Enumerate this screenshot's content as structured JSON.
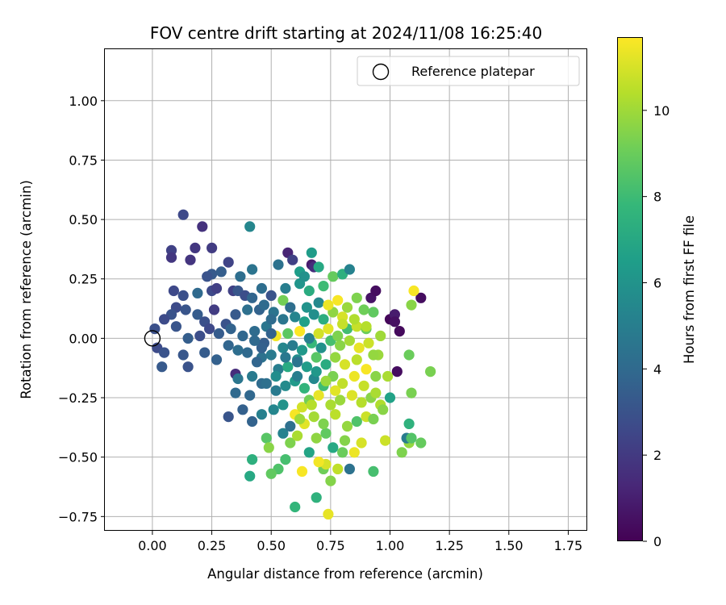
{
  "chart_data": {
    "type": "scatter",
    "title": "FOV centre drift starting at 2024/11/08 16:25:40",
    "xlabel": "Angular distance from reference (arcmin)",
    "ylabel": "Rotation from reference (arcmin)",
    "xlim": [
      -0.2,
      1.83
    ],
    "ylim": [
      -0.81,
      1.22
    ],
    "x_ticks": [
      0.0,
      0.25,
      0.5,
      0.75,
      1.0,
      1.25,
      1.5,
      1.75
    ],
    "x_tick_labels": [
      "0.00",
      "0.25",
      "0.50",
      "0.75",
      "1.00",
      "1.25",
      "1.50",
      "1.75"
    ],
    "y_ticks": [
      1.0,
      0.75,
      0.5,
      0.25,
      0.0,
      -0.25,
      -0.5,
      -0.75
    ],
    "y_tick_labels": [
      "1.00",
      "0.75",
      "0.50",
      "0.25",
      "0.00",
      "−0.25",
      "−0.50",
      "−0.75"
    ],
    "grid": true,
    "legend": {
      "placement": "top-right",
      "entries": [
        "Reference platepar"
      ]
    },
    "reference_point": {
      "x": 0.0,
      "y": 0.0,
      "label": "Reference platepar"
    },
    "colorbar": {
      "label": "Hours from first FF file",
      "colormap": "viridis",
      "range": [
        0,
        11.7
      ],
      "ticks": [
        0,
        2,
        4,
        6,
        8,
        10
      ],
      "tick_labels": [
        "0",
        "2",
        "4",
        "6",
        "8",
        "10"
      ]
    },
    "colormap_stops": [
      "#440154",
      "#482878",
      "#3e4989",
      "#31688e",
      "#26828e",
      "#1f9e89",
      "#35b779",
      "#6ece58",
      "#b5de2b",
      "#fde725"
    ],
    "points": [
      {
        "x": 0.13,
        "y": 0.52,
        "c": 2.6
      },
      {
        "x": 0.21,
        "y": 0.47,
        "c": 1.7
      },
      {
        "x": 0.25,
        "y": 0.38,
        "c": 2.1
      },
      {
        "x": 0.18,
        "y": 0.38,
        "c": 1.9
      },
      {
        "x": 0.08,
        "y": 0.37,
        "c": 2.3
      },
      {
        "x": 0.16,
        "y": 0.33,
        "c": 1.8
      },
      {
        "x": 0.08,
        "y": 0.34,
        "c": 1.9
      },
      {
        "x": 0.32,
        "y": 0.32,
        "c": 2.4
      },
      {
        "x": 0.25,
        "y": 0.27,
        "c": 3.3
      },
      {
        "x": 0.23,
        "y": 0.26,
        "c": 3.0
      },
      {
        "x": 0.29,
        "y": 0.28,
        "c": 3.5
      },
      {
        "x": 0.37,
        "y": 0.26,
        "c": 4.2
      },
      {
        "x": 0.42,
        "y": 0.29,
        "c": 4.5
      },
      {
        "x": 0.41,
        "y": 0.47,
        "c": 5.4
      },
      {
        "x": 0.09,
        "y": 0.2,
        "c": 2.6
      },
      {
        "x": 0.13,
        "y": 0.18,
        "c": 2.9
      },
      {
        "x": 0.19,
        "y": 0.19,
        "c": 4.0
      },
      {
        "x": 0.25,
        "y": 0.2,
        "c": 2.6
      },
      {
        "x": 0.27,
        "y": 0.21,
        "c": 2.2
      },
      {
        "x": 0.34,
        "y": 0.2,
        "c": 2.3
      },
      {
        "x": 0.36,
        "y": 0.2,
        "c": 3.2
      },
      {
        "x": 0.39,
        "y": 0.18,
        "c": 2.8
      },
      {
        "x": 0.42,
        "y": 0.17,
        "c": 3.8
      },
      {
        "x": 0.1,
        "y": 0.13,
        "c": 2.7
      },
      {
        "x": 0.14,
        "y": 0.12,
        "c": 3.1
      },
      {
        "x": 0.08,
        "y": 0.1,
        "c": 3.0
      },
      {
        "x": 0.05,
        "y": 0.08,
        "c": 2.7
      },
      {
        "x": 0.19,
        "y": 0.1,
        "c": 3.4
      },
      {
        "x": 0.22,
        "y": 0.07,
        "c": 2.9
      },
      {
        "x": 0.26,
        "y": 0.12,
        "c": 2.1
      },
      {
        "x": 0.31,
        "y": 0.06,
        "c": 3.0
      },
      {
        "x": 0.35,
        "y": 0.1,
        "c": 3.3
      },
      {
        "x": 0.4,
        "y": 0.12,
        "c": 4.3
      },
      {
        "x": 0.45,
        "y": 0.12,
        "c": 3.7
      },
      {
        "x": 0.47,
        "y": 0.14,
        "c": 4.1
      },
      {
        "x": 0.51,
        "y": 0.11,
        "c": 4.5
      },
      {
        "x": 0.01,
        "y": 0.04,
        "c": 2.9
      },
      {
        "x": 0.1,
        "y": 0.05,
        "c": 3.1
      },
      {
        "x": 0.15,
        "y": 0.0,
        "c": 3.5
      },
      {
        "x": 0.2,
        "y": 0.01,
        "c": 2.8
      },
      {
        "x": 0.24,
        "y": 0.04,
        "c": 2.6
      },
      {
        "x": 0.28,
        "y": 0.02,
        "c": 3.4
      },
      {
        "x": 0.33,
        "y": 0.04,
        "c": 3.7
      },
      {
        "x": 0.38,
        "y": 0.01,
        "c": 3.9
      },
      {
        "x": 0.43,
        "y": 0.03,
        "c": 4.1
      },
      {
        "x": 0.48,
        "y": 0.05,
        "c": 4.6
      },
      {
        "x": 0.02,
        "y": -0.04,
        "c": 2.7
      },
      {
        "x": 0.05,
        "y": -0.06,
        "c": 3.0
      },
      {
        "x": 0.13,
        "y": -0.07,
        "c": 3.2
      },
      {
        "x": 0.22,
        "y": -0.06,
        "c": 3.4
      },
      {
        "x": 0.27,
        "y": -0.09,
        "c": 3.6
      },
      {
        "x": 0.32,
        "y": -0.03,
        "c": 3.8
      },
      {
        "x": 0.36,
        "y": -0.05,
        "c": 4.2
      },
      {
        "x": 0.4,
        "y": -0.06,
        "c": 4.0
      },
      {
        "x": 0.46,
        "y": -0.08,
        "c": 4.4
      },
      {
        "x": 0.04,
        "y": -0.12,
        "c": 3.3
      },
      {
        "x": 0.15,
        "y": -0.12,
        "c": 3.0
      },
      {
        "x": 0.35,
        "y": -0.15,
        "c": 1.5
      },
      {
        "x": 0.36,
        "y": -0.17,
        "c": 4.6
      },
      {
        "x": 0.42,
        "y": -0.16,
        "c": 4.8
      },
      {
        "x": 0.46,
        "y": -0.19,
        "c": 4.1
      },
      {
        "x": 0.35,
        "y": -0.23,
        "c": 4.0
      },
      {
        "x": 0.41,
        "y": -0.24,
        "c": 3.9
      },
      {
        "x": 0.48,
        "y": -0.19,
        "c": 4.3
      },
      {
        "x": 0.38,
        "y": -0.3,
        "c": 3.6
      },
      {
        "x": 0.32,
        "y": -0.33,
        "c": 3.1
      },
      {
        "x": 0.42,
        "y": -0.35,
        "c": 3.7
      },
      {
        "x": 0.46,
        "y": -0.32,
        "c": 5.1
      },
      {
        "x": 0.51,
        "y": -0.3,
        "c": 5.4
      },
      {
        "x": 0.55,
        "y": -0.28,
        "c": 6.0
      },
      {
        "x": 0.48,
        "y": -0.42,
        "c": 8.6
      },
      {
        "x": 0.55,
        "y": -0.4,
        "c": 5.2
      },
      {
        "x": 0.58,
        "y": -0.37,
        "c": 4.3
      },
      {
        "x": 0.49,
        "y": -0.46,
        "c": 9.6
      },
      {
        "x": 0.42,
        "y": -0.51,
        "c": 7.4
      },
      {
        "x": 0.41,
        "y": -0.58,
        "c": 7.0
      },
      {
        "x": 0.53,
        "y": -0.55,
        "c": 8.4
      },
      {
        "x": 0.5,
        "y": -0.57,
        "c": 8.8
      },
      {
        "x": 0.56,
        "y": -0.51,
        "c": 8.2
      },
      {
        "x": 0.58,
        "y": -0.44,
        "c": 9.4
      },
      {
        "x": 0.61,
        "y": -0.41,
        "c": 10.2
      },
      {
        "x": 0.6,
        "y": -0.71,
        "c": 7.7
      },
      {
        "x": 0.69,
        "y": -0.67,
        "c": 7.5
      },
      {
        "x": 0.74,
        "y": -0.74,
        "c": 11.3
      },
      {
        "x": 0.75,
        "y": -0.6,
        "c": 9.5
      },
      {
        "x": 0.72,
        "y": -0.55,
        "c": 9.1
      },
      {
        "x": 0.78,
        "y": -0.55,
        "c": 10.6
      },
      {
        "x": 0.83,
        "y": -0.55,
        "c": 4.4
      },
      {
        "x": 0.93,
        "y": -0.56,
        "c": 8.2
      },
      {
        "x": 0.73,
        "y": -0.53,
        "c": 11.0
      },
      {
        "x": 0.7,
        "y": -0.52,
        "c": 11.5
      },
      {
        "x": 0.63,
        "y": -0.56,
        "c": 11.6
      },
      {
        "x": 0.66,
        "y": -0.48,
        "c": 6.8
      },
      {
        "x": 0.76,
        "y": -0.46,
        "c": 7.0
      },
      {
        "x": 0.8,
        "y": -0.48,
        "c": 9.0
      },
      {
        "x": 0.85,
        "y": -0.48,
        "c": 11.4
      },
      {
        "x": 0.69,
        "y": -0.42,
        "c": 9.7
      },
      {
        "x": 0.73,
        "y": -0.4,
        "c": 8.8
      },
      {
        "x": 0.81,
        "y": -0.43,
        "c": 9.5
      },
      {
        "x": 0.88,
        "y": -0.44,
        "c": 11.0
      },
      {
        "x": 0.64,
        "y": -0.36,
        "c": 11.2
      },
      {
        "x": 0.68,
        "y": -0.33,
        "c": 10.1
      },
      {
        "x": 0.72,
        "y": -0.36,
        "c": 9.4
      },
      {
        "x": 0.77,
        "y": -0.32,
        "c": 10.5
      },
      {
        "x": 0.82,
        "y": -0.37,
        "c": 9.8
      },
      {
        "x": 0.86,
        "y": -0.35,
        "c": 8.4
      },
      {
        "x": 0.9,
        "y": -0.33,
        "c": 10.8
      },
      {
        "x": 0.93,
        "y": -0.34,
        "c": 9.3
      },
      {
        "x": 0.6,
        "y": -0.32,
        "c": 11.6
      },
      {
        "x": 0.63,
        "y": -0.29,
        "c": 10.9
      },
      {
        "x": 0.66,
        "y": -0.26,
        "c": 9.2
      },
      {
        "x": 0.7,
        "y": -0.24,
        "c": 11.3
      },
      {
        "x": 0.75,
        "y": -0.28,
        "c": 10.2
      },
      {
        "x": 0.79,
        "y": -0.26,
        "c": 9.9
      },
      {
        "x": 0.84,
        "y": -0.24,
        "c": 11.1
      },
      {
        "x": 0.88,
        "y": -0.27,
        "c": 10.4
      },
      {
        "x": 0.92,
        "y": -0.25,
        "c": 9.6
      },
      {
        "x": 0.96,
        "y": -0.28,
        "c": 10.3
      },
      {
        "x": 1.0,
        "y": -0.25,
        "c": 6.7
      },
      {
        "x": 0.52,
        "y": -0.22,
        "c": 4.8
      },
      {
        "x": 0.56,
        "y": -0.2,
        "c": 5.6
      },
      {
        "x": 0.6,
        "y": -0.18,
        "c": 6.3
      },
      {
        "x": 0.64,
        "y": -0.21,
        "c": 7.6
      },
      {
        "x": 0.68,
        "y": -0.17,
        "c": 5.5
      },
      {
        "x": 0.72,
        "y": -0.2,
        "c": 8.0
      },
      {
        "x": 0.76,
        "y": -0.16,
        "c": 9.3
      },
      {
        "x": 0.8,
        "y": -0.19,
        "c": 10.6
      },
      {
        "x": 0.85,
        "y": -0.16,
        "c": 11.4
      },
      {
        "x": 0.89,
        "y": -0.2,
        "c": 10.7
      },
      {
        "x": 0.94,
        "y": -0.16,
        "c": 9.6
      },
      {
        "x": 0.99,
        "y": -0.16,
        "c": 10.2
      },
      {
        "x": 1.03,
        "y": -0.14,
        "c": 0.4
      },
      {
        "x": 1.09,
        "y": -0.23,
        "c": 9.3
      },
      {
        "x": 0.53,
        "y": -0.13,
        "c": 5.0
      },
      {
        "x": 0.57,
        "y": -0.12,
        "c": 7.1
      },
      {
        "x": 0.61,
        "y": -0.09,
        "c": 5.7
      },
      {
        "x": 0.65,
        "y": -0.12,
        "c": 6.4
      },
      {
        "x": 0.69,
        "y": -0.08,
        "c": 8.6
      },
      {
        "x": 0.73,
        "y": -0.11,
        "c": 7.2
      },
      {
        "x": 0.77,
        "y": -0.08,
        "c": 9.8
      },
      {
        "x": 0.81,
        "y": -0.11,
        "c": 11.0
      },
      {
        "x": 0.86,
        "y": -0.09,
        "c": 10.5
      },
      {
        "x": 0.9,
        "y": -0.13,
        "c": 11.6
      },
      {
        "x": 0.95,
        "y": -0.07,
        "c": 9.9
      },
      {
        "x": 1.08,
        "y": -0.07,
        "c": 9.0
      },
      {
        "x": 0.55,
        "y": -0.04,
        "c": 5.4
      },
      {
        "x": 0.59,
        "y": -0.03,
        "c": 4.9
      },
      {
        "x": 0.63,
        "y": -0.05,
        "c": 6.2
      },
      {
        "x": 0.67,
        "y": -0.02,
        "c": 7.8
      },
      {
        "x": 0.71,
        "y": -0.04,
        "c": 5.9
      },
      {
        "x": 0.75,
        "y": -0.01,
        "c": 8.2
      },
      {
        "x": 0.79,
        "y": -0.03,
        "c": 9.6
      },
      {
        "x": 0.83,
        "y": -0.01,
        "c": 10.1
      },
      {
        "x": 0.87,
        "y": -0.04,
        "c": 11.3
      },
      {
        "x": 0.91,
        "y": -0.02,
        "c": 10.8
      },
      {
        "x": 0.52,
        "y": 0.01,
        "c": 11.5
      },
      {
        "x": 0.57,
        "y": 0.02,
        "c": 8.7
      },
      {
        "x": 0.62,
        "y": 0.03,
        "c": 11.7
      },
      {
        "x": 0.66,
        "y": 0.0,
        "c": 5.1
      },
      {
        "x": 0.7,
        "y": 0.02,
        "c": 10.9
      },
      {
        "x": 0.74,
        "y": 0.04,
        "c": 11.2
      },
      {
        "x": 0.78,
        "y": 0.01,
        "c": 9.4
      },
      {
        "x": 0.82,
        "y": 0.04,
        "c": 8.1
      },
      {
        "x": 0.86,
        "y": 0.05,
        "c": 10.7
      },
      {
        "x": 0.9,
        "y": 0.04,
        "c": 9.0
      },
      {
        "x": 0.96,
        "y": 0.01,
        "c": 10.0
      },
      {
        "x": 0.55,
        "y": 0.08,
        "c": 4.6
      },
      {
        "x": 0.6,
        "y": 0.09,
        "c": 5.3
      },
      {
        "x": 0.64,
        "y": 0.07,
        "c": 6.6
      },
      {
        "x": 0.68,
        "y": 0.1,
        "c": 5.8
      },
      {
        "x": 0.72,
        "y": 0.08,
        "c": 7.3
      },
      {
        "x": 0.76,
        "y": 0.11,
        "c": 9.7
      },
      {
        "x": 0.8,
        "y": 0.09,
        "c": 11.0
      },
      {
        "x": 0.85,
        "y": 0.08,
        "c": 10.3
      },
      {
        "x": 0.89,
        "y": 0.12,
        "c": 9.1
      },
      {
        "x": 0.93,
        "y": 0.11,
        "c": 8.8
      },
      {
        "x": 0.55,
        "y": 0.16,
        "c": 9.2
      },
      {
        "x": 0.58,
        "y": 0.13,
        "c": 4.2
      },
      {
        "x": 0.65,
        "y": 0.13,
        "c": 6.0
      },
      {
        "x": 0.7,
        "y": 0.15,
        "c": 5.5
      },
      {
        "x": 0.74,
        "y": 0.14,
        "c": 11.4
      },
      {
        "x": 0.78,
        "y": 0.16,
        "c": 11.6
      },
      {
        "x": 0.82,
        "y": 0.13,
        "c": 9.9
      },
      {
        "x": 0.86,
        "y": 0.17,
        "c": 9.4
      },
      {
        "x": 0.92,
        "y": 0.17,
        "c": 0.6
      },
      {
        "x": 0.94,
        "y": 0.2,
        "c": 0.4
      },
      {
        "x": 0.56,
        "y": 0.21,
        "c": 5.0
      },
      {
        "x": 0.62,
        "y": 0.23,
        "c": 6.1
      },
      {
        "x": 0.66,
        "y": 0.2,
        "c": 7.2
      },
      {
        "x": 0.72,
        "y": 0.22,
        "c": 8.0
      },
      {
        "x": 0.76,
        "y": 0.26,
        "c": 8.9
      },
      {
        "x": 0.8,
        "y": 0.27,
        "c": 7.4
      },
      {
        "x": 0.83,
        "y": 0.29,
        "c": 5.2
      },
      {
        "x": 0.53,
        "y": 0.31,
        "c": 4.4
      },
      {
        "x": 0.57,
        "y": 0.36,
        "c": 1.2
      },
      {
        "x": 0.59,
        "y": 0.33,
        "c": 2.3
      },
      {
        "x": 0.62,
        "y": 0.28,
        "c": 6.5
      },
      {
        "x": 0.64,
        "y": 0.26,
        "c": 5.9
      },
      {
        "x": 0.67,
        "y": 0.31,
        "c": 0.9
      },
      {
        "x": 0.68,
        "y": 0.3,
        "c": 1.5
      },
      {
        "x": 0.67,
        "y": 0.36,
        "c": 6.4
      },
      {
        "x": 0.7,
        "y": 0.3,
        "c": 7.0
      },
      {
        "x": 0.46,
        "y": 0.21,
        "c": 4.2
      },
      {
        "x": 0.5,
        "y": 0.18,
        "c": 3.0
      },
      {
        "x": 0.5,
        "y": 0.08,
        "c": 4.1
      },
      {
        "x": 0.5,
        "y": 0.02,
        "c": 3.7
      },
      {
        "x": 0.47,
        "y": -0.02,
        "c": 3.5
      },
      {
        "x": 0.5,
        "y": -0.07,
        "c": 4.8
      },
      {
        "x": 1.0,
        "y": 0.08,
        "c": 0.2
      },
      {
        "x": 1.02,
        "y": 0.1,
        "c": 0.9
      },
      {
        "x": 1.02,
        "y": 0.07,
        "c": 0.5
      },
      {
        "x": 1.04,
        "y": 0.03,
        "c": 0.3
      },
      {
        "x": 1.13,
        "y": 0.17,
        "c": 0.4
      },
      {
        "x": 1.1,
        "y": 0.2,
        "c": 11.6
      },
      {
        "x": 1.09,
        "y": 0.14,
        "c": 9.6
      },
      {
        "x": 1.17,
        "y": -0.14,
        "c": 9.3
      },
      {
        "x": 1.13,
        "y": -0.44,
        "c": 8.9
      },
      {
        "x": 1.08,
        "y": -0.44,
        "c": 9.8
      },
      {
        "x": 1.05,
        "y": -0.48,
        "c": 9.4
      },
      {
        "x": 1.07,
        "y": -0.42,
        "c": 4.9
      },
      {
        "x": 1.09,
        "y": -0.42,
        "c": 8.5
      },
      {
        "x": 1.08,
        "y": -0.36,
        "c": 7.5
      },
      {
        "x": 0.98,
        "y": -0.43,
        "c": 10.8
      },
      {
        "x": 0.97,
        "y": -0.3,
        "c": 9.6
      },
      {
        "x": 0.94,
        "y": -0.23,
        "c": 10.2
      },
      {
        "x": 0.9,
        "y": 0.05,
        "c": 10.4
      },
      {
        "x": 0.93,
        "y": -0.07,
        "c": 9.8
      },
      {
        "x": 0.8,
        "y": 0.06,
        "c": 10.7
      },
      {
        "x": 0.61,
        "y": -0.1,
        "c": 4.5
      },
      {
        "x": 0.46,
        "y": -0.04,
        "c": 3.6
      },
      {
        "x": 0.43,
        "y": -0.01,
        "c": 4.0
      },
      {
        "x": 0.44,
        "y": -0.1,
        "c": 3.8
      },
      {
        "x": 0.52,
        "y": -0.16,
        "c": 5.7
      },
      {
        "x": 0.56,
        "y": -0.08,
        "c": 4.7
      },
      {
        "x": 0.61,
        "y": -0.16,
        "c": 5.0
      },
      {
        "x": 0.69,
        "y": -0.14,
        "c": 6.2
      },
      {
        "x": 0.73,
        "y": -0.18,
        "c": 9.9
      },
      {
        "x": 0.77,
        "y": -0.22,
        "c": 11.2
      },
      {
        "x": 0.67,
        "y": -0.28,
        "c": 10.4
      },
      {
        "x": 0.62,
        "y": -0.34,
        "c": 10.0
      }
    ]
  }
}
